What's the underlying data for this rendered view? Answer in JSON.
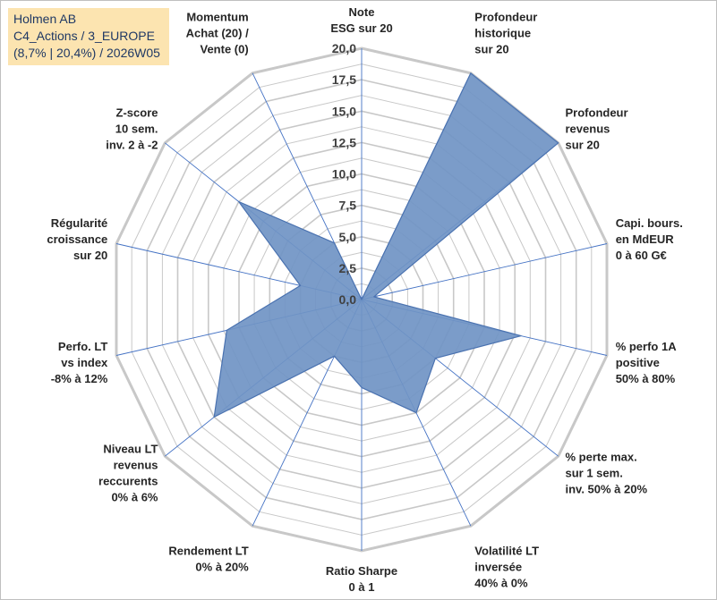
{
  "header": {
    "line1": "Holmen AB",
    "line2": "C4_Actions / 3_EUROPE",
    "line3": "(8,7% | 20,4%) / 2026W05"
  },
  "colors": {
    "fill": "#7094c4",
    "stroke": "#4a72b0",
    "grid": "#c8c8c8",
    "spoke": "#4472c4",
    "title_bg": "#fce4b0",
    "title_text": "#1f3864"
  },
  "chart_data": {
    "type": "radar",
    "rlim": [
      0,
      20
    ],
    "ticks": [
      "0,0",
      "2,5",
      "5,0",
      "7,5",
      "10,0",
      "12,5",
      "15,0",
      "17,5",
      "20,0"
    ],
    "tick_values": [
      0,
      2.5,
      5,
      7.5,
      10,
      12.5,
      15,
      17.5,
      20
    ],
    "grid_rings": 16,
    "axes": [
      {
        "label": [
          "Note",
          "ESG sur 20"
        ],
        "value": 0
      },
      {
        "label": [
          "Profondeur",
          "historique",
          "sur 20"
        ],
        "value": 20
      },
      {
        "label": [
          "Profondeur",
          "revenus",
          "sur 20"
        ],
        "value": 20
      },
      {
        "label": [
          "Capi. bours.",
          "en MdEUR",
          "0 à 60 G€"
        ],
        "value": 1
      },
      {
        "label": [
          "% perfo 1A",
          "positive",
          "50% à 80%"
        ],
        "value": 13
      },
      {
        "label": [
          "% perte max.",
          "sur 1 sem.",
          "inv. 50% à 20%"
        ],
        "value": 7.5
      },
      {
        "label": [
          "Volatilité LT",
          "inversée",
          "40% à 0%"
        ],
        "value": 10
      },
      {
        "label": [
          "Ratio Sharpe",
          "0 à 1"
        ],
        "value": 7
      },
      {
        "label": [
          "Rendement LT",
          "0% à 20%"
        ],
        "value": 5
      },
      {
        "label": [
          "Niveau LT",
          "revenus",
          "reccurents",
          "0% à 6%"
        ],
        "value": 15
      },
      {
        "label": [
          "Perfo. LT",
          "vs index",
          "-8% à 12%"
        ],
        "value": 11
      },
      {
        "label": [
          "Régularité",
          "croissance",
          "sur 20"
        ],
        "value": 5
      },
      {
        "label": [
          "Z-score",
          "10 sem.",
          "inv. 2 à -2"
        ],
        "value": 12.5
      },
      {
        "label": [
          "Momentum",
          "Achat (20) /",
          "Vente (0)"
        ],
        "value": 5
      }
    ]
  }
}
